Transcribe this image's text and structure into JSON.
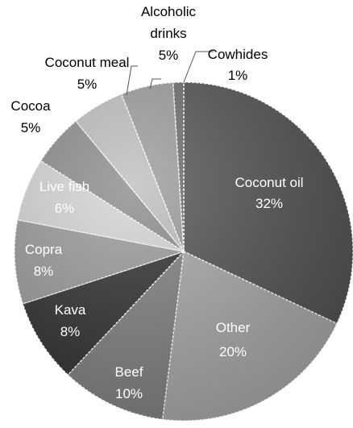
{
  "chart_data": {
    "type": "pie",
    "title": "",
    "slices": [
      {
        "name": "Coconut oil",
        "value": 32,
        "label": "32%",
        "color": "#505050",
        "text_color": "#ffffff"
      },
      {
        "name": "Other",
        "value": 20,
        "label": "20%",
        "color": "#a6a6a6",
        "text_color": "#ffffff"
      },
      {
        "name": "Beef",
        "value": 10,
        "label": "10%",
        "color": "#7e7e7e",
        "text_color": "#ffffff"
      },
      {
        "name": "Kava",
        "value": 8,
        "label": "8%",
        "color": "#2e2e2e",
        "text_color": "#ffffff"
      },
      {
        "name": "Copra",
        "value": 8,
        "label": "8%",
        "color": "#999999",
        "text_color": "#ffffff"
      },
      {
        "name": "Live fish",
        "value": 6,
        "label": "6%",
        "color": "#d4d4d4",
        "text_color": "#ffffff"
      },
      {
        "name": "Cocoa",
        "value": 5,
        "label": "5%",
        "color": "#8a8a8a",
        "text_color": "#000000"
      },
      {
        "name": "Coconut meal",
        "value": 5,
        "label": "5%",
        "color": "#bdbdbd",
        "text_color": "#000000"
      },
      {
        "name": "Alcoholic drinks",
        "value": 5,
        "label": "5%",
        "color": "#9a9a9a",
        "text_color": "#000000"
      },
      {
        "name": "Cowhides",
        "value": 1,
        "label": "1%",
        "color": "#6a6a6a",
        "text_color": "#000000"
      }
    ]
  }
}
